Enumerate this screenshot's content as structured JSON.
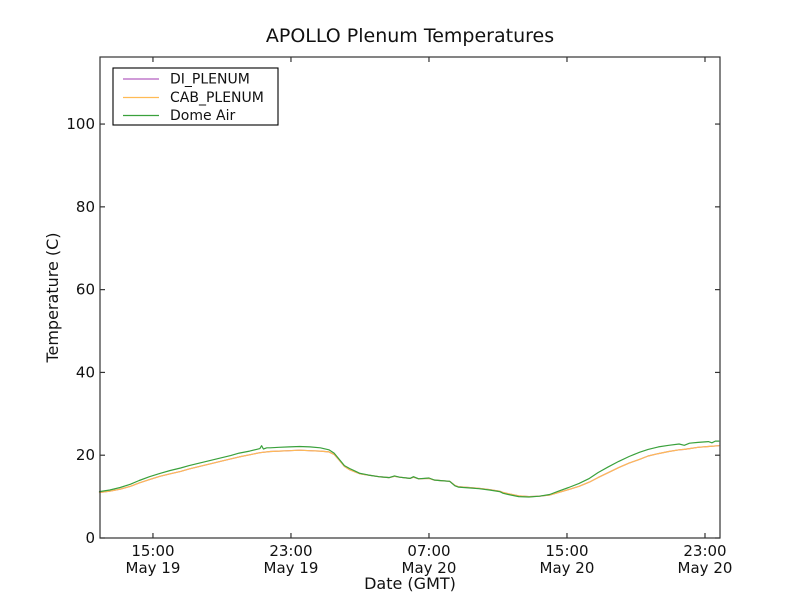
{
  "colors": {
    "background": "#ffffff",
    "frame": "#333333",
    "text": "#111111",
    "legend_border": "#000000"
  },
  "chart_data": {
    "type": "line",
    "title": "APOLLO Plenum Temperatures",
    "xlabel": "Date (GMT)",
    "ylabel": "Temperature (C)",
    "grid": false,
    "legend_position": "upper left",
    "x_axis": {
      "unit": "hours since May 19 00:00 GMT",
      "lim": [
        11.93,
        47.87
      ],
      "ticks": [
        {
          "v": 15,
          "label": [
            "15:00",
            "May 19"
          ]
        },
        {
          "v": 23,
          "label": [
            "23:00",
            "May 19"
          ]
        },
        {
          "v": 31,
          "label": [
            "07:00",
            "May 20"
          ]
        },
        {
          "v": 39,
          "label": [
            "15:00",
            "May 20"
          ]
        },
        {
          "v": 47,
          "label": [
            "23:00",
            "May 20"
          ]
        }
      ]
    },
    "y_axis": {
      "lim": [
        0,
        116.2
      ],
      "ticks": [
        0,
        20,
        40,
        60,
        80,
        100
      ]
    },
    "series": [
      {
        "name": "DI_PLENUM",
        "color": "#b55fc0",
        "points": [
          [
            11.9,
            11.0
          ],
          [
            12.5,
            11.3
          ],
          [
            13.1,
            11.8
          ],
          [
            13.7,
            12.5
          ],
          [
            14.2,
            13.3
          ],
          [
            14.8,
            14.1
          ],
          [
            15.4,
            14.9
          ],
          [
            16.0,
            15.5
          ],
          [
            16.6,
            16.1
          ],
          [
            17.1,
            16.7
          ],
          [
            17.7,
            17.3
          ],
          [
            18.3,
            17.9
          ],
          [
            18.9,
            18.5
          ],
          [
            19.5,
            19.1
          ],
          [
            20.0,
            19.6
          ],
          [
            20.6,
            20.1
          ],
          [
            21.2,
            20.6
          ],
          [
            21.8,
            20.9
          ],
          [
            22.3,
            21.0
          ],
          [
            22.9,
            21.1
          ],
          [
            23.5,
            21.2
          ],
          [
            24.1,
            21.1
          ],
          [
            24.7,
            21.0
          ],
          [
            25.2,
            20.8
          ],
          [
            25.5,
            20.2
          ],
          [
            25.8,
            18.8
          ],
          [
            26.1,
            17.3
          ],
          [
            26.4,
            16.5
          ],
          [
            26.7,
            16.0
          ],
          [
            27.0,
            15.5
          ],
          [
            27.3,
            15.3
          ],
          [
            27.5,
            15.2
          ],
          [
            28.1,
            14.8
          ],
          [
            28.7,
            14.6
          ],
          [
            29.0,
            14.9
          ],
          [
            29.3,
            14.7
          ],
          [
            29.9,
            14.4
          ],
          [
            30.1,
            14.7
          ],
          [
            30.4,
            14.3
          ],
          [
            31.0,
            14.4
          ],
          [
            31.3,
            14.0
          ],
          [
            31.6,
            13.9
          ],
          [
            32.2,
            13.7
          ],
          [
            32.5,
            12.7
          ],
          [
            32.7,
            12.4
          ],
          [
            33.3,
            12.2
          ],
          [
            33.9,
            12.0
          ],
          [
            34.5,
            11.7
          ],
          [
            35.1,
            11.3
          ],
          [
            35.3,
            11.0
          ],
          [
            35.6,
            10.7
          ],
          [
            36.2,
            10.2
          ],
          [
            36.8,
            10.0
          ],
          [
            37.4,
            10.1
          ],
          [
            38.0,
            10.4
          ],
          [
            38.5,
            11.0
          ],
          [
            39.1,
            11.7
          ],
          [
            39.7,
            12.5
          ],
          [
            40.3,
            13.5
          ],
          [
            40.8,
            14.6
          ],
          [
            41.4,
            15.8
          ],
          [
            42.0,
            17.0
          ],
          [
            42.6,
            18.1
          ],
          [
            43.2,
            19.0
          ],
          [
            43.7,
            19.8
          ],
          [
            44.3,
            20.4
          ],
          [
            44.9,
            20.9
          ],
          [
            45.5,
            21.3
          ],
          [
            45.8,
            21.4
          ],
          [
            46.1,
            21.6
          ],
          [
            46.6,
            21.9
          ],
          [
            47.2,
            22.1
          ],
          [
            47.8,
            22.3
          ]
        ]
      },
      {
        "name": "CAB_PLENUM",
        "color": "#ffbb55",
        "points": [
          [
            11.9,
            11.0
          ],
          [
            12.5,
            11.3
          ],
          [
            13.1,
            11.8
          ],
          [
            13.7,
            12.5
          ],
          [
            14.2,
            13.3
          ],
          [
            14.8,
            14.1
          ],
          [
            15.4,
            14.9
          ],
          [
            16.0,
            15.5
          ],
          [
            16.6,
            16.1
          ],
          [
            17.1,
            16.7
          ],
          [
            17.7,
            17.3
          ],
          [
            18.3,
            17.9
          ],
          [
            18.9,
            18.5
          ],
          [
            19.5,
            19.1
          ],
          [
            20.0,
            19.6
          ],
          [
            20.6,
            20.1
          ],
          [
            21.2,
            20.6
          ],
          [
            21.8,
            20.9
          ],
          [
            22.3,
            21.0
          ],
          [
            22.9,
            21.1
          ],
          [
            23.5,
            21.2
          ],
          [
            24.1,
            21.1
          ],
          [
            24.7,
            21.0
          ],
          [
            25.2,
            20.8
          ],
          [
            25.5,
            20.2
          ],
          [
            25.8,
            18.8
          ],
          [
            26.1,
            17.3
          ],
          [
            26.4,
            16.5
          ],
          [
            26.7,
            16.0
          ],
          [
            27.0,
            15.5
          ],
          [
            27.3,
            15.3
          ],
          [
            27.5,
            15.2
          ],
          [
            28.1,
            14.8
          ],
          [
            28.7,
            14.6
          ],
          [
            29.0,
            14.9
          ],
          [
            29.3,
            14.7
          ],
          [
            29.9,
            14.4
          ],
          [
            30.1,
            14.7
          ],
          [
            30.4,
            14.3
          ],
          [
            31.0,
            14.4
          ],
          [
            31.3,
            14.0
          ],
          [
            31.6,
            13.9
          ],
          [
            32.2,
            13.7
          ],
          [
            32.5,
            12.7
          ],
          [
            32.7,
            12.4
          ],
          [
            33.3,
            12.2
          ],
          [
            33.9,
            12.0
          ],
          [
            34.5,
            11.7
          ],
          [
            35.1,
            11.3
          ],
          [
            35.3,
            11.0
          ],
          [
            35.6,
            10.7
          ],
          [
            36.2,
            10.2
          ],
          [
            36.8,
            10.0
          ],
          [
            37.4,
            10.1
          ],
          [
            38.0,
            10.4
          ],
          [
            38.5,
            11.0
          ],
          [
            39.1,
            11.7
          ],
          [
            39.7,
            12.5
          ],
          [
            40.3,
            13.5
          ],
          [
            40.8,
            14.6
          ],
          [
            41.4,
            15.8
          ],
          [
            42.0,
            17.0
          ],
          [
            42.6,
            18.1
          ],
          [
            43.2,
            19.0
          ],
          [
            43.7,
            19.8
          ],
          [
            44.3,
            20.4
          ],
          [
            44.9,
            20.9
          ],
          [
            45.5,
            21.3
          ],
          [
            45.8,
            21.4
          ],
          [
            46.1,
            21.6
          ],
          [
            46.6,
            21.9
          ],
          [
            47.2,
            22.1
          ],
          [
            47.8,
            22.3
          ]
        ]
      },
      {
        "name": "Dome Air",
        "color": "#3aa13c",
        "points": [
          [
            11.9,
            11.2
          ],
          [
            12.5,
            11.6
          ],
          [
            13.1,
            12.2
          ],
          [
            13.7,
            13.0
          ],
          [
            14.2,
            13.9
          ],
          [
            14.8,
            14.8
          ],
          [
            15.4,
            15.6
          ],
          [
            16.0,
            16.3
          ],
          [
            16.6,
            16.9
          ],
          [
            17.1,
            17.5
          ],
          [
            17.7,
            18.1
          ],
          [
            18.3,
            18.7
          ],
          [
            18.9,
            19.3
          ],
          [
            19.5,
            19.9
          ],
          [
            20.0,
            20.5
          ],
          [
            20.6,
            21.0
          ],
          [
            21.0,
            21.4
          ],
          [
            21.2,
            21.6
          ],
          [
            21.3,
            22.3
          ],
          [
            21.4,
            21.5
          ],
          [
            21.6,
            21.8
          ],
          [
            21.8,
            21.8
          ],
          [
            22.3,
            21.9
          ],
          [
            22.9,
            22.0
          ],
          [
            23.5,
            22.1
          ],
          [
            24.1,
            22.0
          ],
          [
            24.7,
            21.8
          ],
          [
            25.2,
            21.3
          ],
          [
            25.5,
            20.5
          ],
          [
            25.8,
            19.0
          ],
          [
            26.1,
            17.5
          ],
          [
            26.4,
            16.8
          ],
          [
            26.7,
            16.2
          ],
          [
            27.0,
            15.6
          ],
          [
            27.3,
            15.4
          ],
          [
            27.5,
            15.2
          ],
          [
            28.1,
            14.8
          ],
          [
            28.7,
            14.6
          ],
          [
            29.0,
            15.0
          ],
          [
            29.3,
            14.7
          ],
          [
            29.9,
            14.4
          ],
          [
            30.1,
            14.8
          ],
          [
            30.4,
            14.3
          ],
          [
            31.0,
            14.5
          ],
          [
            31.3,
            14.0
          ],
          [
            31.6,
            13.9
          ],
          [
            32.2,
            13.7
          ],
          [
            32.5,
            12.6
          ],
          [
            32.7,
            12.3
          ],
          [
            33.3,
            12.1
          ],
          [
            33.9,
            11.9
          ],
          [
            34.5,
            11.6
          ],
          [
            35.1,
            11.2
          ],
          [
            35.3,
            10.8
          ],
          [
            35.6,
            10.5
          ],
          [
            36.2,
            10.0
          ],
          [
            36.8,
            9.9
          ],
          [
            37.4,
            10.1
          ],
          [
            38.0,
            10.5
          ],
          [
            38.5,
            11.3
          ],
          [
            39.1,
            12.2
          ],
          [
            39.7,
            13.2
          ],
          [
            40.3,
            14.4
          ],
          [
            40.8,
            15.8
          ],
          [
            41.4,
            17.2
          ],
          [
            42.0,
            18.5
          ],
          [
            42.6,
            19.7
          ],
          [
            43.2,
            20.7
          ],
          [
            43.7,
            21.4
          ],
          [
            44.3,
            22.0
          ],
          [
            44.9,
            22.4
          ],
          [
            45.5,
            22.7
          ],
          [
            45.8,
            22.4
          ],
          [
            46.1,
            22.9
          ],
          [
            46.6,
            23.1
          ],
          [
            47.2,
            23.3
          ],
          [
            47.4,
            23.0
          ],
          [
            47.6,
            23.4
          ],
          [
            47.8,
            23.4
          ]
        ]
      }
    ]
  }
}
